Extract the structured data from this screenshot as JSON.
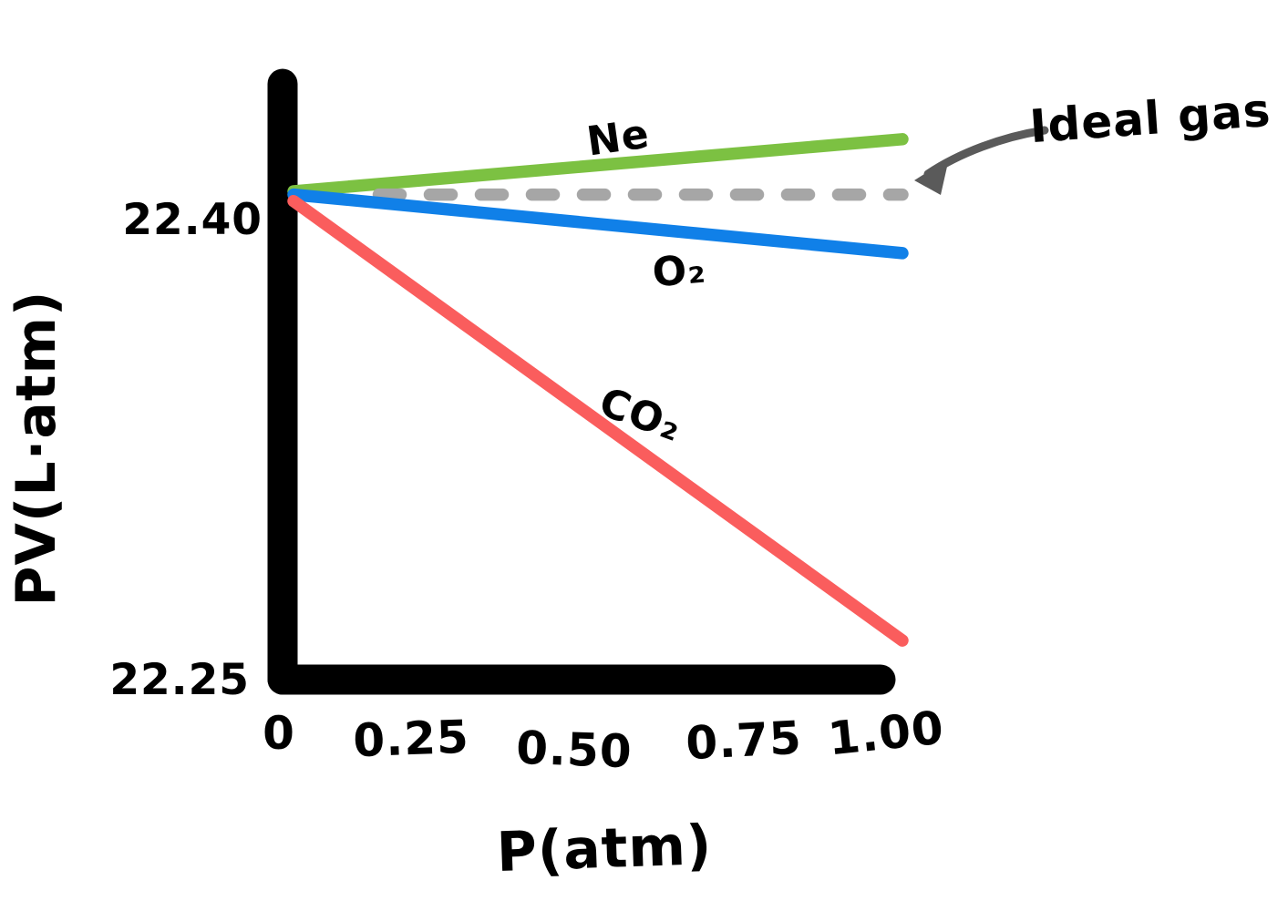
{
  "chart_data": {
    "type": "line",
    "title": "",
    "xlabel": "P(atm)",
    "ylabel": "PV(L·atm)",
    "x_ticks": [
      "0",
      "0.25",
      "0.50",
      "0.75",
      "1.00"
    ],
    "y_ticks": [
      "22.40",
      "22.25"
    ],
    "xlim": [
      0,
      1.0
    ],
    "ylim": [
      22.25,
      22.43
    ],
    "grid": false,
    "legend": "inline-labels",
    "series": [
      {
        "name": "Ne",
        "label": "Ne",
        "color": "#7CC142",
        "style": "solid",
        "points": [
          [
            0,
            22.4
          ],
          [
            1.0,
            22.416
          ]
        ]
      },
      {
        "name": "ideal-gas",
        "label": "Ideal gas",
        "color": "#A6A6A6",
        "style": "dashed",
        "points": [
          [
            0.14,
            22.399
          ],
          [
            1.0,
            22.399
          ]
        ]
      },
      {
        "name": "O2",
        "label": "O₂",
        "color": "#1080E8",
        "style": "solid",
        "points": [
          [
            0,
            22.399
          ],
          [
            1.0,
            22.381
          ]
        ]
      },
      {
        "name": "CO2",
        "label": "CO₂",
        "color": "#FA5D5D",
        "style": "solid",
        "points": [
          [
            0,
            22.397
          ],
          [
            1.0,
            22.262
          ]
        ]
      }
    ],
    "annotation": {
      "text": "Ideal gas",
      "color": "#5A5A5A",
      "points_to": "ideal-gas"
    }
  },
  "axis_color": "#000000",
  "background_color": "#ffffff"
}
